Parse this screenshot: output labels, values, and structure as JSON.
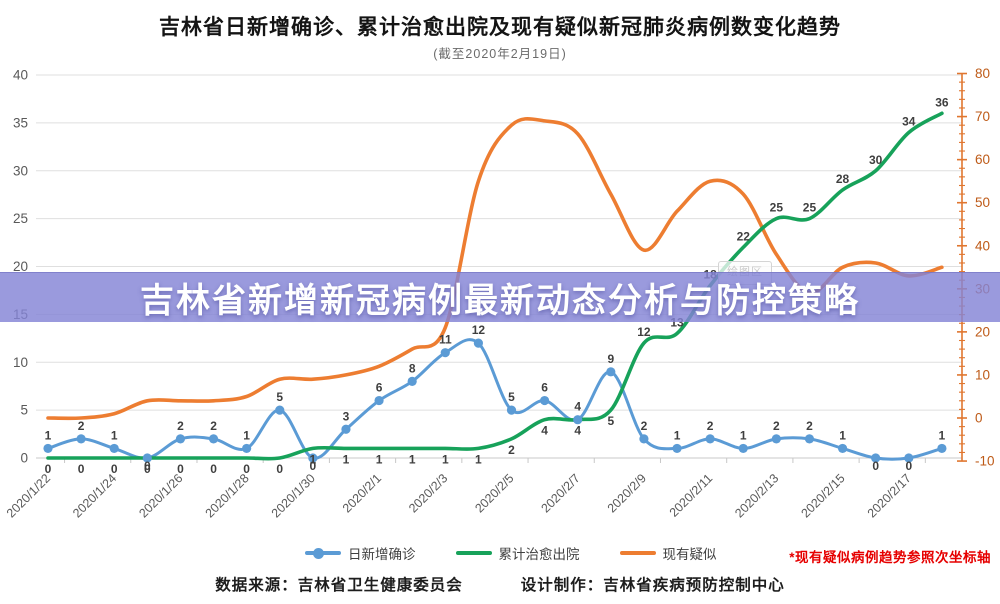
{
  "title": "吉林省日新增确诊、累计治愈出院及现有疑似新冠肺炎病例数变化趋势",
  "subtitle": "(截至2020年2月19日)",
  "banner": {
    "text": "吉林省新增新冠病例最新动态分析与防控策略"
  },
  "watermark": "绘图区",
  "legend": {
    "items": [
      {
        "label": "日新增确诊",
        "color": "#5B9BD5",
        "marker": "line-dot-icon"
      },
      {
        "label": "累计治愈出院",
        "color": "#17A25A",
        "marker": "line-icon"
      },
      {
        "label": "现有疑似",
        "color": "#ED7D31",
        "marker": "line-icon"
      }
    ]
  },
  "axis_note": "*现有疑似病例趋势参照次坐标轴",
  "footer": {
    "source": "数据来源：吉林省卫生健康委员会",
    "design": "设计制作：吉林省疾病预防控制中心"
  },
  "chart_data": {
    "type": "line",
    "smooth": true,
    "grid": true,
    "legend_position": "bottom",
    "x": [
      "2020/1/22",
      "2020/1/23",
      "2020/1/24",
      "2020/1/25",
      "2020/1/26",
      "2020/1/27",
      "2020/1/28",
      "2020/1/29",
      "2020/1/30",
      "2020/1/31",
      "2020/2/1",
      "2020/2/2",
      "2020/2/3",
      "2020/2/4",
      "2020/2/5",
      "2020/2/6",
      "2020/2/7",
      "2020/2/8",
      "2020/2/9",
      "2020/2/10",
      "2020/2/11",
      "2020/2/12",
      "2020/2/13",
      "2020/2/14",
      "2020/2/15",
      "2020/2/16",
      "2020/2/17",
      "2020/2/18"
    ],
    "x_tick_labels": [
      "2020/1/22",
      "2020/1/24",
      "2020/1/26",
      "2020/1/28",
      "2020/1/30",
      "2020/2/1",
      "2020/2/3",
      "2020/2/5",
      "2020/2/7",
      "2020/2/9",
      "2020/2/11",
      "2020/2/13",
      "2020/2/15",
      "2020/2/17"
    ],
    "series": [
      {
        "name": "日新增确诊",
        "axis": "left",
        "color": "#5B9BD5",
        "markers": true,
        "data_labels": true,
        "values": [
          1,
          2,
          1,
          0,
          2,
          2,
          1,
          5,
          0,
          3,
          6,
          8,
          11,
          12,
          5,
          6,
          4,
          9,
          2,
          1,
          2,
          1,
          2,
          2,
          1,
          0,
          0,
          1
        ]
      },
      {
        "name": "累计治愈出院",
        "axis": "left",
        "color": "#17A25A",
        "markers": false,
        "data_labels": true,
        "values": [
          0,
          0,
          0,
          0,
          0,
          0,
          0,
          0,
          1,
          1,
          1,
          1,
          1,
          1,
          2,
          4,
          4,
          5,
          12,
          13,
          18,
          22,
          25,
          25,
          28,
          30,
          34,
          36
        ]
      },
      {
        "name": "现有疑似",
        "axis": "right",
        "color": "#ED7D31",
        "markers": false,
        "data_labels": false,
        "values": [
          0,
          0,
          1,
          4,
          4,
          4,
          5,
          9,
          9,
          10,
          12,
          16,
          21,
          55,
          68,
          69,
          66,
          52,
          39,
          48,
          55,
          52,
          38,
          29,
          35,
          36,
          33,
          35
        ]
      }
    ],
    "left_axis": {
      "min": 0,
      "max": 40,
      "step": 5,
      "label_color": "#595959"
    },
    "right_axis": {
      "min": -10,
      "max": 80,
      "step": 10,
      "minor_step": 2,
      "line_color": "#E0762F",
      "label_color": "#BE5A17"
    },
    "gridline_color": "#DFDFDF",
    "baseline_color": "#C8C8C8",
    "data_label_color": "#3F3F3F"
  }
}
